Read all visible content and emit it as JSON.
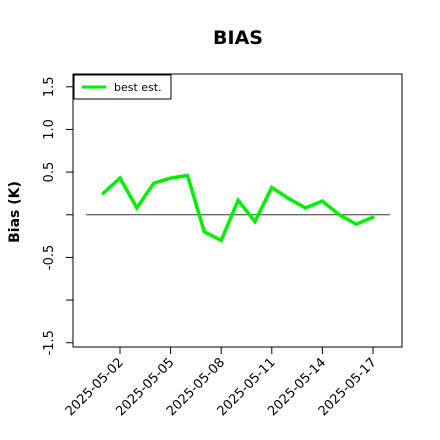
{
  "chart_data": {
    "type": "line",
    "title": "BIAS",
    "ylabel": "Bias (K)",
    "xlabel": "",
    "ylim": [
      -1.55,
      1.65
    ],
    "xlim": [
      "2025-04-30",
      "2025-05-18"
    ],
    "grid": false,
    "legend": {
      "position": "top-left",
      "entries": [
        "best est."
      ]
    },
    "yticks": [
      -1.5,
      -1.0,
      -0.5,
      0,
      0.5,
      1.0,
      1.5
    ],
    "ytick_labels": [
      "-1.5",
      "",
      "-0.5",
      "",
      "0.5",
      "1.0",
      "1.5"
    ],
    "xticks": [
      "2025-05-02",
      "2025-05-05",
      "2025-05-08",
      "2025-05-11",
      "2025-05-14",
      "2025-05-17"
    ],
    "xtick_labels": [
      "2025-05-02",
      "2025-05-05",
      "2025-05-08",
      "2025-05-11",
      "2025-05-14",
      "2025-05-17"
    ],
    "reference_line": {
      "y": 0,
      "color": "#333333"
    },
    "series": [
      {
        "name": "best est.",
        "color": "#00ee00",
        "x": [
          "2025-05-01",
          "2025-05-02",
          "2025-05-03",
          "2025-05-04",
          "2025-05-05",
          "2025-05-06",
          "2025-05-07",
          "2025-05-08",
          "2025-05-09",
          "2025-05-10",
          "2025-05-11",
          "2025-05-12",
          "2025-05-13",
          "2025-05-14",
          "2025-05-15",
          "2025-05-16",
          "2025-05-17"
        ],
        "values": [
          0.25,
          0.43,
          0.08,
          0.37,
          0.43,
          0.46,
          -0.2,
          -0.3,
          0.17,
          -0.08,
          0.32,
          0.19,
          0.08,
          0.16,
          0.0,
          -0.11,
          -0.03
        ]
      }
    ]
  }
}
